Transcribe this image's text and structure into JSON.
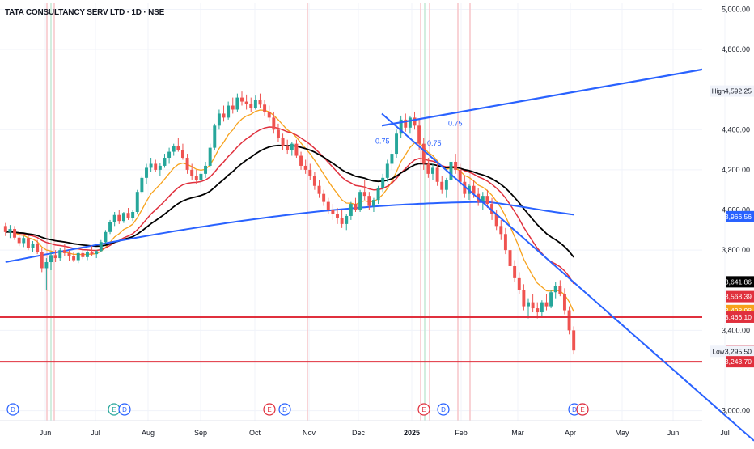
{
  "header": {
    "symbol_title": "TATA CONSULTANCY SERV LTD · 1D · NSE"
  },
  "colors": {
    "up": "#26a69a",
    "down": "#ef5350",
    "grid": "#f0f3fa",
    "ema_fast": "#f7a21b",
    "ema_mid": "#e0303d",
    "ema_slow": "#000000",
    "sma_long": "#2962ff",
    "trendline": "#2962ff",
    "support": "#e0303d",
    "event_line": "#f8c9cc",
    "event_line_green": "#c8ead8"
  },
  "chart_data": {
    "type": "candlestick",
    "x_axis_labels": [
      "Jun",
      "Jul",
      "Aug",
      "Sep",
      "Oct",
      "Nov",
      "Dec",
      "2025",
      "Feb",
      "Mar",
      "Apr",
      "May",
      "Jun",
      "Jul"
    ],
    "y_ticks": [
      "5,000.00",
      "4,800.00",
      "4,400.00",
      "4,200.00",
      "4,000.00",
      "3,800.00",
      "3,400.00",
      "3,000.00"
    ],
    "ylim": [
      2950,
      5030
    ],
    "price_labels": [
      {
        "label": "High",
        "value": "4,592.25",
        "price": 4592.25,
        "style": "plain"
      },
      {
        "label": "",
        "value": "3,966.56",
        "price": 3966.56,
        "style": "blue"
      },
      {
        "label": "",
        "value": "3,641.86",
        "price": 3641.86,
        "style": "black"
      },
      {
        "label": "",
        "value": "3,568.39",
        "price": 3568.39,
        "style": "red"
      },
      {
        "label": "",
        "value": "3,498.98",
        "price": 3498.98,
        "style": "orange"
      },
      {
        "label": "",
        "value": "3,466.10",
        "price": 3466.1,
        "style": "red"
      },
      {
        "label": "",
        "value": "3,299.40",
        "price": 3299.4,
        "style": "red"
      },
      {
        "label": "Low",
        "value": "3,295.50",
        "price": 3295.5,
        "style": "plain"
      },
      {
        "label": "",
        "value": "3,243.70",
        "price": 3243.7,
        "style": "red"
      }
    ],
    "horizontal_lines": [
      3466.1,
      3243.7
    ],
    "fib_labels": [
      "0.75",
      "0.75",
      "0.75"
    ],
    "event_markers": [
      {
        "x_label": "May",
        "glyph": "D",
        "type": "dividend"
      },
      {
        "x_label": "Jul",
        "glyph": "E",
        "type": "earnings"
      },
      {
        "x_label": "Jul",
        "glyph": "D",
        "type": "dividend"
      },
      {
        "x_label": "Oct",
        "glyph": "E",
        "type": "earnings"
      },
      {
        "x_label": "Oct",
        "glyph": "D",
        "type": "dividend"
      },
      {
        "x_label": "Jan",
        "glyph": "E",
        "type": "earnings"
      },
      {
        "x_label": "Jan",
        "glyph": "D",
        "type": "dividend"
      },
      {
        "x_label": "Jan",
        "glyph": "D",
        "type": "dividend"
      },
      {
        "x_label": "Apr",
        "glyph": "⚡",
        "type": "split"
      },
      {
        "x_label": "Apr",
        "glyph": "E",
        "type": "earnings"
      }
    ],
    "trend_start": "2024-05-13",
    "candles": [
      [
        3920,
        3935,
        3870,
        3890
      ],
      [
        3890,
        3925,
        3860,
        3905
      ],
      [
        3905,
        3920,
        3850,
        3862
      ],
      [
        3862,
        3880,
        3820,
        3835
      ],
      [
        3835,
        3870,
        3815,
        3860
      ],
      [
        3860,
        3875,
        3800,
        3812
      ],
      [
        3812,
        3845,
        3790,
        3830
      ],
      [
        3830,
        3850,
        3780,
        3790
      ],
      [
        3790,
        3810,
        3690,
        3710
      ],
      [
        3710,
        3760,
        3600,
        3740
      ],
      [
        3740,
        3790,
        3700,
        3775
      ],
      [
        3775,
        3800,
        3740,
        3760
      ],
      [
        3760,
        3810,
        3745,
        3800
      ],
      [
        3800,
        3830,
        3770,
        3785
      ],
      [
        3785,
        3800,
        3745,
        3770
      ],
      [
        3770,
        3790,
        3740,
        3750
      ],
      [
        3750,
        3790,
        3735,
        3785
      ],
      [
        3785,
        3805,
        3755,
        3765
      ],
      [
        3765,
        3800,
        3750,
        3790
      ],
      [
        3790,
        3820,
        3770,
        3780
      ],
      [
        3780,
        3800,
        3760,
        3795
      ],
      [
        3795,
        3850,
        3790,
        3840
      ],
      [
        3840,
        3900,
        3830,
        3890
      ],
      [
        3890,
        3950,
        3880,
        3940
      ],
      [
        3940,
        3990,
        3920,
        3975
      ],
      [
        3975,
        4000,
        3930,
        3945
      ],
      [
        3945,
        3990,
        3935,
        3985
      ],
      [
        3985,
        4010,
        3950,
        3960
      ],
      [
        3960,
        4000,
        3945,
        3990
      ],
      [
        3990,
        4100,
        3980,
        4090
      ],
      [
        4090,
        4170,
        4080,
        4160
      ],
      [
        4160,
        4230,
        4130,
        4210
      ],
      [
        4210,
        4260,
        4190,
        4230
      ],
      [
        4230,
        4250,
        4190,
        4200
      ],
      [
        4200,
        4235,
        4170,
        4220
      ],
      [
        4220,
        4280,
        4210,
        4260
      ],
      [
        4260,
        4310,
        4230,
        4290
      ],
      [
        4290,
        4330,
        4270,
        4320
      ],
      [
        4320,
        4360,
        4290,
        4300
      ],
      [
        4300,
        4330,
        4250,
        4260
      ],
      [
        4260,
        4280,
        4180,
        4200
      ],
      [
        4200,
        4230,
        4150,
        4170
      ],
      [
        4170,
        4200,
        4130,
        4150
      ],
      [
        4150,
        4190,
        4120,
        4180
      ],
      [
        4180,
        4240,
        4160,
        4220
      ],
      [
        4220,
        4330,
        4210,
        4310
      ],
      [
        4310,
        4430,
        4300,
        4420
      ],
      [
        4420,
        4500,
        4400,
        4480
      ],
      [
        4480,
        4520,
        4440,
        4460
      ],
      [
        4460,
        4540,
        4450,
        4520
      ],
      [
        4520,
        4560,
        4480,
        4500
      ],
      [
        4500,
        4580,
        4490,
        4560
      ],
      [
        4560,
        4590,
        4520,
        4540
      ],
      [
        4540,
        4575,
        4500,
        4530
      ],
      [
        4530,
        4560,
        4490,
        4510
      ],
      [
        4510,
        4570,
        4500,
        4550
      ],
      [
        4550,
        4580,
        4510,
        4525
      ],
      [
        4525,
        4550,
        4470,
        4490
      ],
      [
        4490,
        4520,
        4440,
        4460
      ],
      [
        4460,
        4490,
        4380,
        4400
      ],
      [
        4400,
        4430,
        4340,
        4360
      ],
      [
        4360,
        4380,
        4300,
        4320
      ],
      [
        4320,
        4350,
        4280,
        4300
      ],
      [
        4300,
        4340,
        4270,
        4330
      ],
      [
        4330,
        4350,
        4260,
        4270
      ],
      [
        4270,
        4290,
        4200,
        4220
      ],
      [
        4220,
        4250,
        4180,
        4200
      ],
      [
        4200,
        4230,
        4150,
        4170
      ],
      [
        4170,
        4190,
        4100,
        4120
      ],
      [
        4120,
        4150,
        4060,
        4080
      ],
      [
        4080,
        4100,
        4020,
        4040
      ],
      [
        4040,
        4060,
        3980,
        4000
      ],
      [
        4000,
        4030,
        3950,
        3980
      ],
      [
        3980,
        4010,
        3930,
        3960
      ],
      [
        3960,
        4000,
        3910,
        3930
      ],
      [
        3930,
        3980,
        3900,
        3970
      ],
      [
        3970,
        4040,
        3950,
        4030
      ],
      [
        4030,
        4060,
        3990,
        4000
      ],
      [
        4000,
        4100,
        3990,
        4090
      ],
      [
        4090,
        4150,
        4050,
        4070
      ],
      [
        4070,
        4090,
        4000,
        4020
      ],
      [
        4020,
        4060,
        3990,
        4050
      ],
      [
        4050,
        4120,
        4030,
        4110
      ],
      [
        4110,
        4180,
        4090,
        4160
      ],
      [
        4160,
        4250,
        4140,
        4230
      ],
      [
        4230,
        4300,
        4200,
        4280
      ],
      [
        4280,
        4400,
        4260,
        4380
      ],
      [
        4380,
        4470,
        4360,
        4450
      ],
      [
        4450,
        4480,
        4390,
        4410
      ],
      [
        4410,
        4470,
        4380,
        4460
      ],
      [
        4460,
        4490,
        4400,
        4420
      ],
      [
        4420,
        4450,
        4300,
        4330
      ],
      [
        4330,
        4360,
        4200,
        4230
      ],
      [
        4230,
        4260,
        4160,
        4180
      ],
      [
        4180,
        4230,
        4150,
        4210
      ],
      [
        4210,
        4240,
        4120,
        4140
      ],
      [
        4140,
        4170,
        4080,
        4100
      ],
      [
        4100,
        4160,
        4060,
        4150
      ],
      [
        4150,
        4260,
        4130,
        4240
      ],
      [
        4240,
        4280,
        4180,
        4200
      ],
      [
        4200,
        4230,
        4120,
        4140
      ],
      [
        4140,
        4170,
        4060,
        4080
      ],
      [
        4080,
        4130,
        4050,
        4120
      ],
      [
        4120,
        4150,
        4060,
        4080
      ],
      [
        4080,
        4110,
        4020,
        4040
      ],
      [
        4040,
        4090,
        4000,
        4070
      ],
      [
        4070,
        4100,
        4010,
        4030
      ],
      [
        4030,
        4060,
        3950,
        3980
      ],
      [
        3980,
        4000,
        3900,
        3920
      ],
      [
        3920,
        3950,
        3850,
        3880
      ],
      [
        3880,
        3910,
        3780,
        3800
      ],
      [
        3800,
        3830,
        3700,
        3720
      ],
      [
        3720,
        3750,
        3640,
        3660
      ],
      [
        3660,
        3690,
        3580,
        3600
      ],
      [
        3600,
        3630,
        3500,
        3520
      ],
      [
        3520,
        3560,
        3460,
        3540
      ],
      [
        3540,
        3580,
        3490,
        3510
      ],
      [
        3510,
        3540,
        3460,
        3490
      ],
      [
        3490,
        3550,
        3470,
        3540
      ],
      [
        3540,
        3580,
        3500,
        3520
      ],
      [
        3520,
        3600,
        3510,
        3590
      ],
      [
        3590,
        3640,
        3560,
        3620
      ],
      [
        3620,
        3650,
        3570,
        3580
      ],
      [
        3580,
        3610,
        3480,
        3500
      ],
      [
        3500,
        3520,
        3380,
        3400
      ],
      [
        3400,
        3420,
        3280,
        3300
      ]
    ],
    "series": [
      {
        "name": "",
        "type": "ema_fast"
      },
      {
        "name": "",
        "type": "ema_mid"
      },
      {
        "name": "",
        "type": "ema_slow"
      },
      {
        "name": "",
        "type": "sma_long"
      }
    ]
  }
}
